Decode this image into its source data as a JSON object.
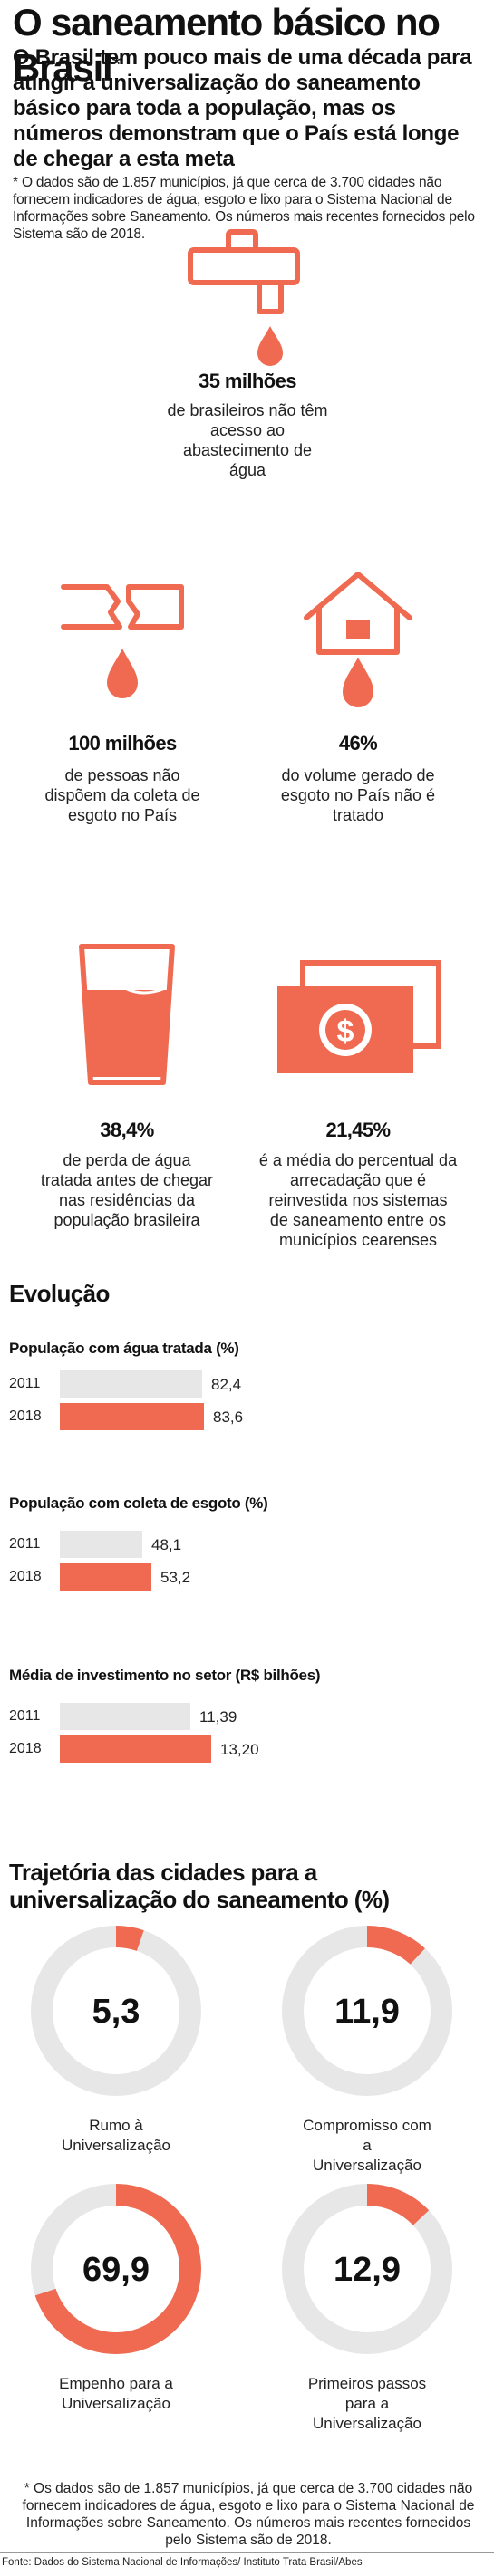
{
  "header": {
    "title": "O saneamento básico no Brasil",
    "title_mark": "*",
    "lead": "O Brasil tem pouco mais de uma década para atingir a universalização do saneamento básico para toda a população, mas os números demonstram que o País está longe de chegar a esta meta",
    "note": "* O dados são de 1.857 municípios, já que cerca de 3.700 cidades não fornecem indicadores de água, esgoto e lixo para o Sistema Nacional de Informações sobre Saneamento. Os números mais recentes fornecidos pelo Sistema são de 2018."
  },
  "stats": [
    {
      "value": "35 milhões",
      "desc": "de brasileiros não têm acesso ao abastecimento de água",
      "icon": "faucet-icon"
    },
    {
      "value": "100 milhões",
      "desc": "de pessoas não dispõem da coleta de esgoto no País",
      "icon": "broken-pipe-icon"
    },
    {
      "value": "46%",
      "desc": "do volume gerado de esgoto no País não é tratado",
      "icon": "house-drop-icon"
    },
    {
      "value": "38,4%",
      "desc": "de perda de água tratada antes de chegar nas residências da população brasileira",
      "icon": "water-glass-icon"
    },
    {
      "value": "21,45%",
      "desc": "é a média do percentual da arrecadação que é reinvestida nos sistemas de saneamento entre os municípios cearenses",
      "icon": "money-icon"
    }
  ],
  "evolucao": {
    "heading": "Evolução",
    "charts": [
      {
        "title": "População com água tratada (%)",
        "rows": [
          {
            "year": "2011",
            "value": 82.4,
            "label": "82,4"
          },
          {
            "year": "2018",
            "value": 83.6,
            "label": "83,6"
          }
        ]
      },
      {
        "title": "População com coleta de esgoto (%)",
        "rows": [
          {
            "year": "2011",
            "value": 48.1,
            "label": "48,1"
          },
          {
            "year": "2018",
            "value": 53.2,
            "label": "53,2"
          }
        ]
      },
      {
        "title": "Média de investimento no setor (R$ bilhões)",
        "rows": [
          {
            "year": "2011",
            "value": 11.39,
            "label": "11,39"
          },
          {
            "year": "2018",
            "value": 13.2,
            "label": "13,20"
          }
        ]
      }
    ]
  },
  "trajetoria": {
    "heading": "Trajetória das cidades para a universalização do saneamento (%)",
    "items": [
      {
        "value": 5.3,
        "label": "5,3",
        "name": "Rumo à Universalização"
      },
      {
        "value": 11.9,
        "label": "11,9",
        "name": "Compromisso com a Universalização"
      },
      {
        "value": 69.9,
        "label": "69,9",
        "name": "Empenho para a Universalização"
      },
      {
        "value": 12.9,
        "label": "12,9",
        "name": "Primeiros passos para a Universalização"
      }
    ]
  },
  "footnote": "* Os dados são de 1.857 municípios, já que cerca de 3.700 cidades não fornecem indicadores de água, esgoto e lixo para o Sistema Nacional de Informações sobre Saneamento. Os números mais recentes fornecidos pelo Sistema são de 2018.",
  "source": "Fonte: Dados do Sistema Nacional de Informações/ Instituto Trata Brasil/Abes",
  "colors": {
    "accent": "#ef6a50",
    "track": "#e7e7e7"
  },
  "chart_data": [
    {
      "type": "bar",
      "title": "População com água tratada (%)",
      "categories": [
        "2011",
        "2018"
      ],
      "values": [
        82.4,
        83.6
      ],
      "xlim": [
        0,
        100
      ]
    },
    {
      "type": "bar",
      "title": "População com coleta de esgoto (%)",
      "categories": [
        "2011",
        "2018"
      ],
      "values": [
        48.1,
        53.2
      ],
      "xlim": [
        0,
        100
      ]
    },
    {
      "type": "bar",
      "title": "Média de investimento no setor (R$ bilhões)",
      "categories": [
        "2011",
        "2018"
      ],
      "values": [
        11.39,
        13.2
      ],
      "xlim": [
        0,
        15
      ]
    },
    {
      "type": "pie",
      "title": "Trajetória das cidades para a universalização do saneamento (%)",
      "categories": [
        "Rumo à Universalização",
        "Compromisso com a Universalização",
        "Empenho para a Universalização",
        "Primeiros passos para a Universalização"
      ],
      "values": [
        5.3,
        11.9,
        69.9,
        12.9
      ]
    }
  ]
}
